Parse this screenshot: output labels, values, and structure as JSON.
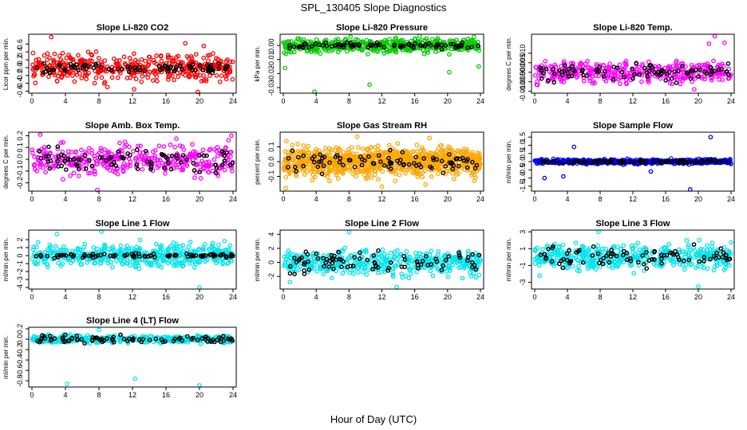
{
  "figure": {
    "title": "SPL_130405  Slope Diagnostics",
    "xlabel": "Hour of Day (UTC)"
  },
  "colors": {
    "background": "#ffffff",
    "axis": "#000000",
    "overlay_points": "#000000"
  },
  "chart_data": [
    {
      "type": "scatter",
      "id": "co2",
      "title": "Slope Li-820 CO2",
      "ylabel": "Licor ppm per min.",
      "color": "#ff0000",
      "xlim": [
        0,
        24
      ],
      "xticks": [
        0,
        4,
        8,
        12,
        16,
        20,
        24
      ],
      "ylim": [
        -0.65,
        0.85
      ],
      "yticks": [
        -0.6,
        -0.4,
        -0.2,
        0.0,
        0.2,
        0.4,
        0.6
      ],
      "ytick_labels": [
        "-0.6",
        "-0.4",
        "-0.2",
        "0.0",
        "0.2",
        "0.4",
        "0.6"
      ],
      "n_points": 420,
      "spread": 0.24,
      "black_spread": 0.08,
      "outliers": [
        [
          2.3,
          0.78
        ],
        [
          12.2,
          -0.55
        ],
        [
          18.3,
          0.62
        ],
        [
          19.8,
          -0.62
        ],
        [
          20.5,
          0.55
        ]
      ]
    },
    {
      "type": "scatter",
      "id": "pressure",
      "title": "Slope Li-820 Pressure",
      "ylabel": "kPa per min.",
      "color": "#00cc00",
      "xlim": [
        0,
        24
      ],
      "xticks": [
        0,
        4,
        8,
        12,
        16,
        20,
        24
      ],
      "ylim": [
        -0.034,
        0.008
      ],
      "yticks": [
        -0.03,
        -0.02,
        -0.01,
        0.0
      ],
      "ytick_labels": [
        "-0.03",
        "-0.02",
        "-0.01",
        "0.00"
      ],
      "n_points": 500,
      "spread": 0.0035,
      "black_spread": 0.0015,
      "outliers": [
        [
          0.2,
          -0.016
        ],
        [
          3.8,
          -0.033
        ],
        [
          10.5,
          -0.028
        ],
        [
          20.2,
          -0.019
        ],
        [
          23.2,
          0.006
        ],
        [
          23.8,
          -0.015
        ]
      ]
    },
    {
      "type": "scatter",
      "id": "temp",
      "title": "Slope Li-820 Temp.",
      "ylabel": "degrees C per min.",
      "color": "#ff00ff",
      "xlim": [
        0,
        24
      ],
      "xticks": [
        0,
        4,
        8,
        12,
        16,
        20,
        24
      ],
      "ylim": [
        -0.011,
        0.02
      ],
      "yticks": [
        -0.01,
        -0.005,
        0.0,
        0.005,
        0.01
      ],
      "ytick_labels": [
        "-0.010",
        "-0.005",
        "0.000",
        "0.005",
        "0.010"
      ],
      "n_points": 380,
      "spread": 0.004,
      "black_spread": 0.003,
      "outliers": [
        [
          22.0,
          0.019
        ],
        [
          21.3,
          0.015
        ],
        [
          19.5,
          -0.009
        ],
        [
          23.2,
          0.0155
        ]
      ]
    },
    {
      "type": "scatter",
      "id": "ambtemp",
      "title": "Slope Amb. Box Temp.",
      "ylabel": "degrees C per min.",
      "color": "#ff00ff",
      "xlim": [
        0,
        24
      ],
      "xticks": [
        0,
        4,
        8,
        12,
        16,
        20,
        24
      ],
      "ylim": [
        -0.27,
        0.23
      ],
      "yticks": [
        -0.2,
        -0.1,
        0.0,
        0.1,
        0.2
      ],
      "ytick_labels": [
        "-0.2",
        "-0.1",
        "0.0",
        "0.1",
        "0.2"
      ],
      "n_points": 360,
      "spread": 0.09,
      "black_spread": 0.08,
      "outliers": [
        [
          7.8,
          -0.26
        ],
        [
          1.0,
          0.21
        ],
        [
          23.8,
          0.2
        ]
      ]
    },
    {
      "type": "scatter",
      "id": "rh",
      "title": "Slope Gas Stream RH",
      "ylabel": "percent per min.",
      "color": "#ffa500",
      "xlim": [
        0,
        24
      ],
      "xticks": [
        0,
        4,
        8,
        12,
        16,
        20,
        24
      ],
      "ylim": [
        -0.2,
        0.2
      ],
      "yticks": [
        -0.1,
        0.0,
        0.1
      ],
      "ytick_labels": [
        "-0.1",
        "0.0",
        "0.1"
      ],
      "n_points": 900,
      "spread": 0.07,
      "black_spread": 0.05,
      "outliers": [
        [
          0.3,
          -0.18
        ],
        [
          9.0,
          0.17
        ],
        [
          12.0,
          -0.17
        ],
        [
          17.8,
          0.16
        ]
      ]
    },
    {
      "type": "scatter",
      "id": "sample",
      "title": "Slope Sample Flow",
      "ylabel": "ml/min per min.",
      "color": "#0000ff",
      "xlim": [
        0,
        24
      ],
      "xticks": [
        0,
        4,
        8,
        12,
        16,
        20,
        24
      ],
      "ylim": [
        -1.8,
        1.8
      ],
      "yticks": [
        -1.5,
        -1.0,
        -0.5,
        0.0,
        0.5,
        1.0,
        1.5
      ],
      "ytick_labels": [
        "-1.5",
        "-1.0",
        "-0.5",
        "0.0",
        "0.5",
        "1.0",
        "1.5"
      ],
      "n_points": 520,
      "spread": 0.1,
      "black_spread": 0.07,
      "outliers": [
        [
          19.0,
          -1.7
        ],
        [
          21.5,
          1.5
        ],
        [
          1.2,
          -1.0
        ],
        [
          3.5,
          -0.9
        ],
        [
          4.8,
          0.9
        ],
        [
          14.2,
          -0.6
        ]
      ]
    },
    {
      "type": "scatter",
      "id": "line1",
      "title": "Slope Line 1 Flow",
      "ylabel": "ml/min per min.",
      "color": "#00e5ee",
      "xlim": [
        0,
        24
      ],
      "xticks": [
        0,
        4,
        8,
        12,
        16,
        20,
        24
      ],
      "ylim": [
        -4.2,
        3.2
      ],
      "yticks": [
        -4,
        -3,
        -2,
        -1,
        0,
        1,
        2
      ],
      "ytick_labels": [
        "-4",
        "-3",
        "-2",
        "-1",
        "0",
        "1",
        "2"
      ],
      "n_points": 480,
      "spread": 1.0,
      "black_spread": 0.15,
      "outliers": [
        [
          20.0,
          -4.0
        ],
        [
          8.3,
          3.0
        ],
        [
          3.0,
          2.7
        ]
      ]
    },
    {
      "type": "scatter",
      "id": "line2",
      "title": "Slope Line 2 Flow",
      "ylabel": "ml/min per min.",
      "color": "#00e5ee",
      "xlim": [
        0,
        24
      ],
      "xticks": [
        0,
        4,
        8,
        12,
        16,
        20,
        24
      ],
      "ylim": [
        -3.8,
        4.6
      ],
      "yticks": [
        -2,
        0,
        2,
        4
      ],
      "ytick_labels": [
        "-2",
        "0",
        "2",
        "4"
      ],
      "n_points": 460,
      "spread": 1.2,
      "black_spread": 1.0,
      "outliers": [
        [
          8.0,
          4.3
        ],
        [
          0.8,
          -2.8
        ],
        [
          13.8,
          -3.5
        ]
      ]
    },
    {
      "type": "scatter",
      "id": "line3",
      "title": "Slope Line 3 Flow",
      "ylabel": "ml/min per min.",
      "color": "#00e5ee",
      "xlim": [
        0,
        24
      ],
      "xticks": [
        0,
        4,
        8,
        12,
        16,
        20,
        24
      ],
      "ylim": [
        -3.8,
        3.2
      ],
      "yticks": [
        -3,
        -1,
        1,
        3
      ],
      "ytick_labels": [
        "-3",
        "-1",
        "1",
        "3"
      ],
      "n_points": 460,
      "spread": 1.0,
      "black_spread": 0.8,
      "outliers": [
        [
          20.0,
          -3.5
        ],
        [
          7.8,
          3.0
        ],
        [
          0.6,
          -2.2
        ]
      ]
    },
    {
      "type": "scatter",
      "id": "line4",
      "title": "Slope Line 4 (LT) Flow",
      "ylabel": "ml/min per min.",
      "color": "#00e5ee",
      "xlim": [
        0,
        24
      ],
      "xticks": [
        0,
        4,
        8,
        12,
        16,
        20,
        24
      ],
      "ylim": [
        -0.92,
        0.23
      ],
      "yticks": [
        -0.8,
        -0.6,
        -0.4,
        -0.2,
        0.0,
        0.2
      ],
      "ytick_labels": [
        "-0.8",
        "-0.6",
        "-0.4",
        "-0.2",
        "0.0",
        "0.2"
      ],
      "n_points": 420,
      "spread": 0.05,
      "black_spread": 0.05,
      "outliers": [
        [
          4.2,
          -0.86
        ],
        [
          12.3,
          -0.76
        ],
        [
          20.0,
          -0.89
        ],
        [
          8.0,
          0.18
        ]
      ]
    }
  ]
}
